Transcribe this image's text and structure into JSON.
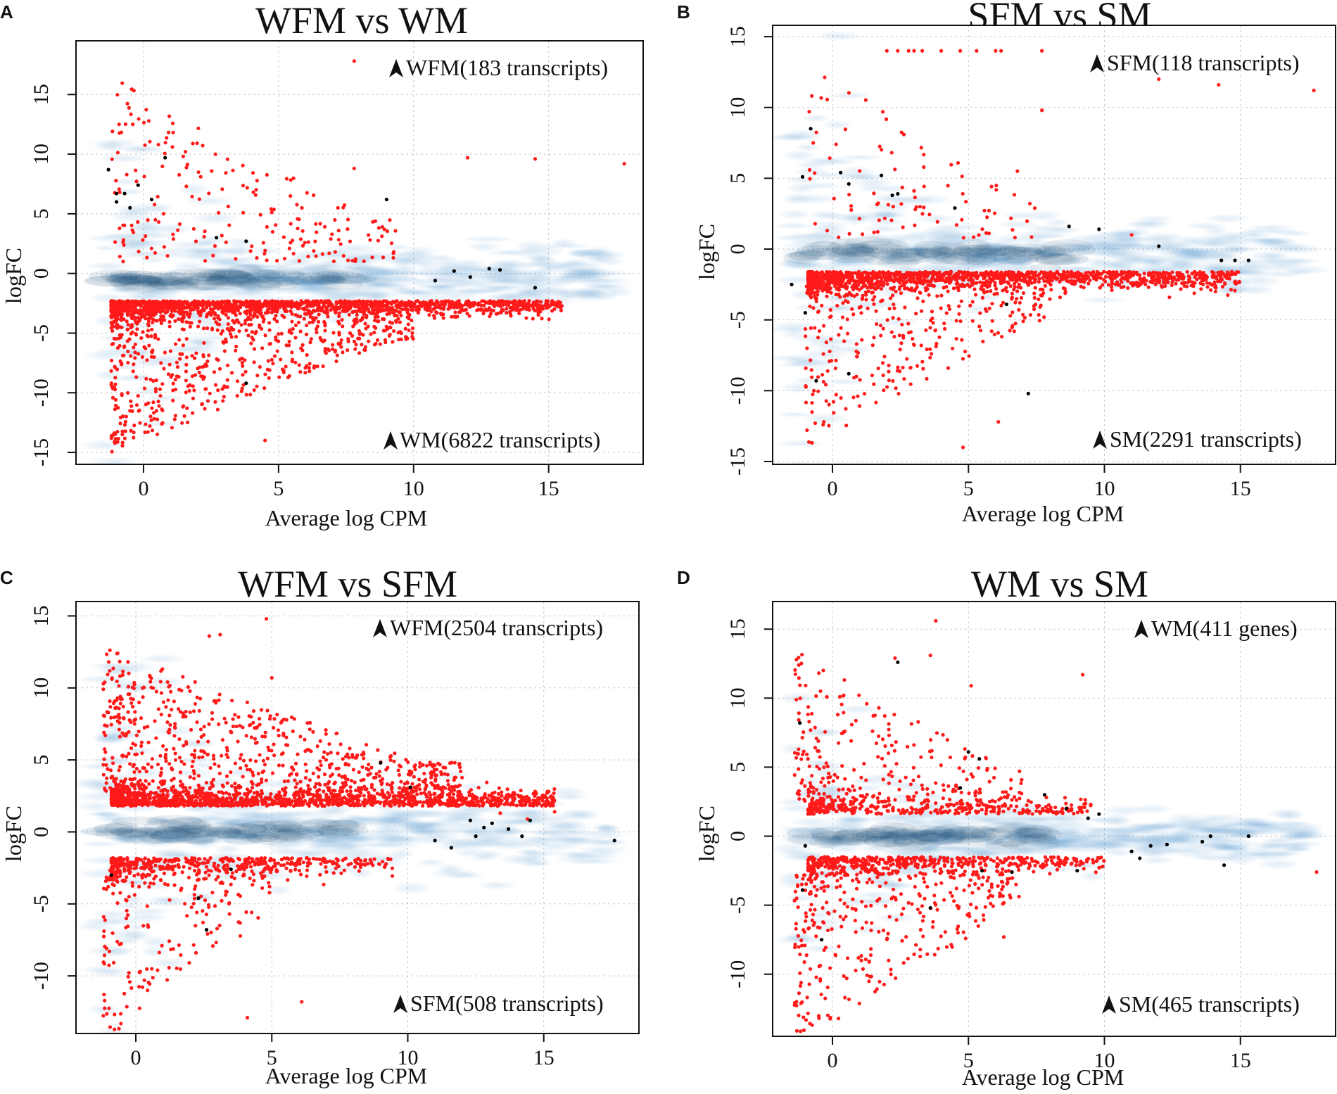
{
  "colors": {
    "background": "#ffffff",
    "density_light": "#dbe8f4",
    "density_mid": "#5b9bd0",
    "density_dark": "#0a3d70",
    "de_point": "#ff1a1a",
    "other_point": "#000000",
    "grid": "#c9c9c9",
    "axis": "#111111"
  },
  "chart_data": [
    {
      "panel": "A",
      "type": "scatter",
      "title": "WFM vs WM",
      "xlabel": "Average log CPM",
      "ylabel": "logFC",
      "xlim": [
        -2.5,
        18.5
      ],
      "ylim": [
        -16,
        19.5
      ],
      "xticks": [
        0,
        5,
        10,
        15
      ],
      "yticks": [
        -15,
        -10,
        -5,
        0,
        5,
        10,
        15
      ],
      "annotations": {
        "upper": "WFM(183 transcripts)",
        "lower": "WM(6822 transcripts)"
      },
      "density": {
        "center_logFC": -0.5,
        "spread": 1.3,
        "x_max": 17.5
      },
      "de_points": {
        "band": {
          "count": 1500,
          "center_logFC": -2.3,
          "x_range": [
            -1.2,
            15.5
          ]
        },
        "down_scatter": {
          "count": 650,
          "x_range": [
            -1.2,
            10
          ],
          "logFC_range": [
            -14,
            -3
          ]
        },
        "up_scatter": {
          "count": 200,
          "x_range": [
            -1.2,
            9.5
          ],
          "logFC_range": [
            1,
            15
          ]
        },
        "outliers": [
          {
            "x": 7.8,
            "y": 17.8
          },
          {
            "x": 12,
            "y": 9.7
          },
          {
            "x": 14.5,
            "y": 9.6
          },
          {
            "x": 17.8,
            "y": 9.2
          },
          {
            "x": 7.8,
            "y": 8.8
          },
          {
            "x": 7.2,
            "y": 5.5
          },
          {
            "x": 4.5,
            "y": -14
          }
        ]
      },
      "other_points": [
        {
          "x": -1.3,
          "y": 8.7
        },
        {
          "x": -1.0,
          "y": 6.7
        },
        {
          "x": -0.7,
          "y": 6.7
        },
        {
          "x": -1.0,
          "y": 6.0
        },
        {
          "x": -0.5,
          "y": 5.5
        },
        {
          "x": -0.2,
          "y": 7.4
        },
        {
          "x": 0.3,
          "y": 6.2
        },
        {
          "x": 0.8,
          "y": 9.7
        },
        {
          "x": 2.7,
          "y": 3.0
        },
        {
          "x": 3.8,
          "y": 2.7
        },
        {
          "x": 9.0,
          "y": 6.2
        },
        {
          "x": 10.8,
          "y": -0.6
        },
        {
          "x": 11.5,
          "y": 0.2
        },
        {
          "x": 12.1,
          "y": -0.3
        },
        {
          "x": 12.8,
          "y": 0.4
        },
        {
          "x": 13.2,
          "y": 0.3
        },
        {
          "x": 14.5,
          "y": -1.2
        },
        {
          "x": 3.8,
          "y": -9.2
        }
      ]
    },
    {
      "panel": "B",
      "type": "scatter",
      "title": "SFM vs SM",
      "xlabel": "Average log CPM",
      "ylabel": "logFC",
      "xlim": [
        -2.2,
        18.5
      ],
      "ylim": [
        -15.2,
        15.8
      ],
      "xticks": [
        0,
        5,
        10,
        15
      ],
      "yticks": [
        -15,
        -10,
        -5,
        0,
        5,
        10,
        15
      ],
      "annotations": {
        "upper": "SFM(118 transcripts)",
        "lower": "SM(2291 transcripts)"
      },
      "density": {
        "center_logFC": -0.3,
        "spread": 1.1,
        "x_max": 17.5
      },
      "de_points": {
        "band": {
          "count": 1400,
          "center_logFC": -1.6,
          "x_range": [
            -0.9,
            15
          ]
        },
        "down_scatter": {
          "count": 300,
          "x_range": [
            -1,
            8
          ],
          "logFC_range": [
            -13,
            -2.5
          ]
        },
        "up_scatter": {
          "count": 90,
          "x_range": [
            -1,
            7.5
          ],
          "logFC_range": [
            0.8,
            12
          ]
        },
        "outliers": [
          {
            "x": 2.0,
            "y": 14
          },
          {
            "x": 2.4,
            "y": 14
          },
          {
            "x": 2.8,
            "y": 14
          },
          {
            "x": 3.0,
            "y": 14
          },
          {
            "x": 3.3,
            "y": 14
          },
          {
            "x": 4.0,
            "y": 14
          },
          {
            "x": 4.7,
            "y": 14
          },
          {
            "x": 5.3,
            "y": 14
          },
          {
            "x": 6.0,
            "y": 14
          },
          {
            "x": 6.2,
            "y": 14
          },
          {
            "x": 7.7,
            "y": 14
          },
          {
            "x": 12.0,
            "y": 12
          },
          {
            "x": 14.2,
            "y": 11.6
          },
          {
            "x": 17.7,
            "y": 11.2
          },
          {
            "x": 7.7,
            "y": 9.8
          },
          {
            "x": 6.8,
            "y": 5.5
          },
          {
            "x": 11.0,
            "y": 1.0
          },
          {
            "x": 6.1,
            "y": -12.2
          },
          {
            "x": 4.8,
            "y": -14
          }
        ]
      },
      "other_points": [
        {
          "x": -0.8,
          "y": 8.5
        },
        {
          "x": -1.1,
          "y": 5.1
        },
        {
          "x": 0.3,
          "y": 5.4
        },
        {
          "x": 0.6,
          "y": 4.6
        },
        {
          "x": 1.8,
          "y": 5.2
        },
        {
          "x": 2.2,
          "y": 3.8
        },
        {
          "x": 2.4,
          "y": 3.9
        },
        {
          "x": 4.5,
          "y": 2.9
        },
        {
          "x": 8.7,
          "y": 1.6
        },
        {
          "x": 9.8,
          "y": 1.4
        },
        {
          "x": 12.0,
          "y": 0.2
        },
        {
          "x": 14.3,
          "y": -0.8
        },
        {
          "x": 14.8,
          "y": -0.8
        },
        {
          "x": 15.3,
          "y": -0.8
        },
        {
          "x": 6.4,
          "y": -3.9
        },
        {
          "x": -1.5,
          "y": -2.5
        },
        {
          "x": -1.0,
          "y": -4.5
        },
        {
          "x": -0.6,
          "y": -9.3
        },
        {
          "x": 0.6,
          "y": -8.8
        },
        {
          "x": 7.2,
          "y": -10.2
        }
      ]
    },
    {
      "panel": "C",
      "type": "scatter",
      "title": "WFM vs SFM",
      "xlabel": "Average log CPM",
      "ylabel": "logFC",
      "xlim": [
        -2.2,
        18.5
      ],
      "ylim": [
        -14,
        16
      ],
      "xticks": [
        0,
        5,
        10,
        15
      ],
      "yticks": [
        -10,
        -5,
        0,
        5,
        10,
        15
      ],
      "annotations": {
        "upper": "WFM(2504 transcripts)",
        "lower": "SFM(508 transcripts)"
      },
      "density": {
        "center_logFC": 0,
        "spread": 1.3,
        "x_max": 17.5
      },
      "de_points": {
        "band": {
          "count": 1400,
          "center_logFC": 1.8,
          "x_range": [
            -0.9,
            15.5
          ]
        },
        "up_scatter": {
          "count": 700,
          "x_range": [
            -1.2,
            12
          ],
          "logFC_range": [
            2.5,
            12
          ]
        },
        "lower_band": {
          "count": 450,
          "center_logFC": -1.8,
          "x_range": [
            -0.9,
            9.5
          ]
        },
        "down_scatter": {
          "count": 180,
          "x_range": [
            -1.2,
            5
          ],
          "logFC_range": [
            -13,
            -2.5
          ]
        },
        "outliers": [
          {
            "x": 4.8,
            "y": 14.8
          },
          {
            "x": 3.1,
            "y": 13.7
          },
          {
            "x": 2.7,
            "y": 13.6
          },
          {
            "x": 5.0,
            "y": 10.7
          },
          {
            "x": 6.1,
            "y": -11.8
          },
          {
            "x": 4.1,
            "y": -12.9
          },
          {
            "x": 15.4,
            "y": 1.4
          },
          {
            "x": 14.4,
            "y": 0.9
          },
          {
            "x": 13.4,
            "y": 1.3
          }
        ]
      },
      "other_points": [
        {
          "x": 9.0,
          "y": 4.8
        },
        {
          "x": 10.1,
          "y": 3.1
        },
        {
          "x": 12.3,
          "y": 0.8
        },
        {
          "x": 12.8,
          "y": 0.3
        },
        {
          "x": 13.1,
          "y": 0.6
        },
        {
          "x": 13.7,
          "y": 0.2
        },
        {
          "x": 14.2,
          "y": -0.3
        },
        {
          "x": 14.5,
          "y": 0.8
        },
        {
          "x": 12.5,
          "y": -0.3
        },
        {
          "x": 11.0,
          "y": -0.6
        },
        {
          "x": 11.6,
          "y": -1.1
        },
        {
          "x": 17.6,
          "y": -0.6
        },
        {
          "x": -0.9,
          "y": -3.0
        },
        {
          "x": 2.3,
          "y": -4.6
        },
        {
          "x": 2.6,
          "y": -6.8
        },
        {
          "x": 3.5,
          "y": -2.6
        }
      ]
    },
    {
      "panel": "D",
      "type": "scatter",
      "title": "WM vs SM",
      "xlabel": "Average log CPM",
      "ylabel": "logFC",
      "xlim": [
        -2.2,
        18.5
      ],
      "ylim": [
        -14.5,
        17
      ],
      "xticks": [
        0,
        5,
        10,
        15
      ],
      "yticks": [
        -10,
        -5,
        0,
        5,
        10,
        15
      ],
      "annotations": {
        "upper": "WM(411 genes)",
        "lower": "SM(465 transcripts)"
      },
      "density": {
        "center_logFC": 0,
        "spread": 0.9,
        "x_max": 17.5
      },
      "de_points": {
        "upper_band": {
          "count": 380,
          "center_logFC": 1.6,
          "x_range": [
            -0.9,
            9.5
          ]
        },
        "up_scatter": {
          "count": 230,
          "x_range": [
            -1.4,
            7
          ],
          "logFC_range": [
            2.5,
            12
          ]
        },
        "lower_band": {
          "count": 480,
          "center_logFC": -1.5,
          "x_range": [
            -0.9,
            10
          ]
        },
        "down_scatter": {
          "count": 330,
          "x_range": [
            -1.4,
            7
          ],
          "logFC_range": [
            -13.5,
            -2.5
          ]
        },
        "outliers": [
          {
            "x": 3.8,
            "y": 15.6
          },
          {
            "x": 2.3,
            "y": 12.9
          },
          {
            "x": 3.6,
            "y": 13.1
          },
          {
            "x": 9.2,
            "y": 11.7
          },
          {
            "x": 5.1,
            "y": 10.9
          },
          {
            "x": 17.8,
            "y": -2.6
          },
          {
            "x": 6.3,
            "y": -7.3
          }
        ]
      },
      "other_points": [
        {
          "x": -1.2,
          "y": 8.2
        },
        {
          "x": 2.4,
          "y": 12.6
        },
        {
          "x": 5.0,
          "y": 6.1
        },
        {
          "x": 5.4,
          "y": 5.6
        },
        {
          "x": 4.7,
          "y": 3.5
        },
        {
          "x": 7.8,
          "y": 3.0
        },
        {
          "x": 8.6,
          "y": 2.0
        },
        {
          "x": 9.4,
          "y": 1.3
        },
        {
          "x": 9.8,
          "y": 1.6
        },
        {
          "x": 11.0,
          "y": -1.1
        },
        {
          "x": 11.7,
          "y": -0.7
        },
        {
          "x": 12.3,
          "y": -0.6
        },
        {
          "x": 13.6,
          "y": -0.4
        },
        {
          "x": 13.9,
          "y": 0.0
        },
        {
          "x": 15.3,
          "y": 0.0
        },
        {
          "x": 14.4,
          "y": -2.1
        },
        {
          "x": 11.3,
          "y": -1.6
        },
        {
          "x": 9.0,
          "y": -2.5
        },
        {
          "x": 5.5,
          "y": -2.5
        },
        {
          "x": 6.6,
          "y": -2.6
        },
        {
          "x": 3.6,
          "y": -5.2
        },
        {
          "x": -1.0,
          "y": -0.7
        },
        {
          "x": -1.1,
          "y": -3.9
        },
        {
          "x": -0.4,
          "y": -7.5
        }
      ]
    }
  ]
}
